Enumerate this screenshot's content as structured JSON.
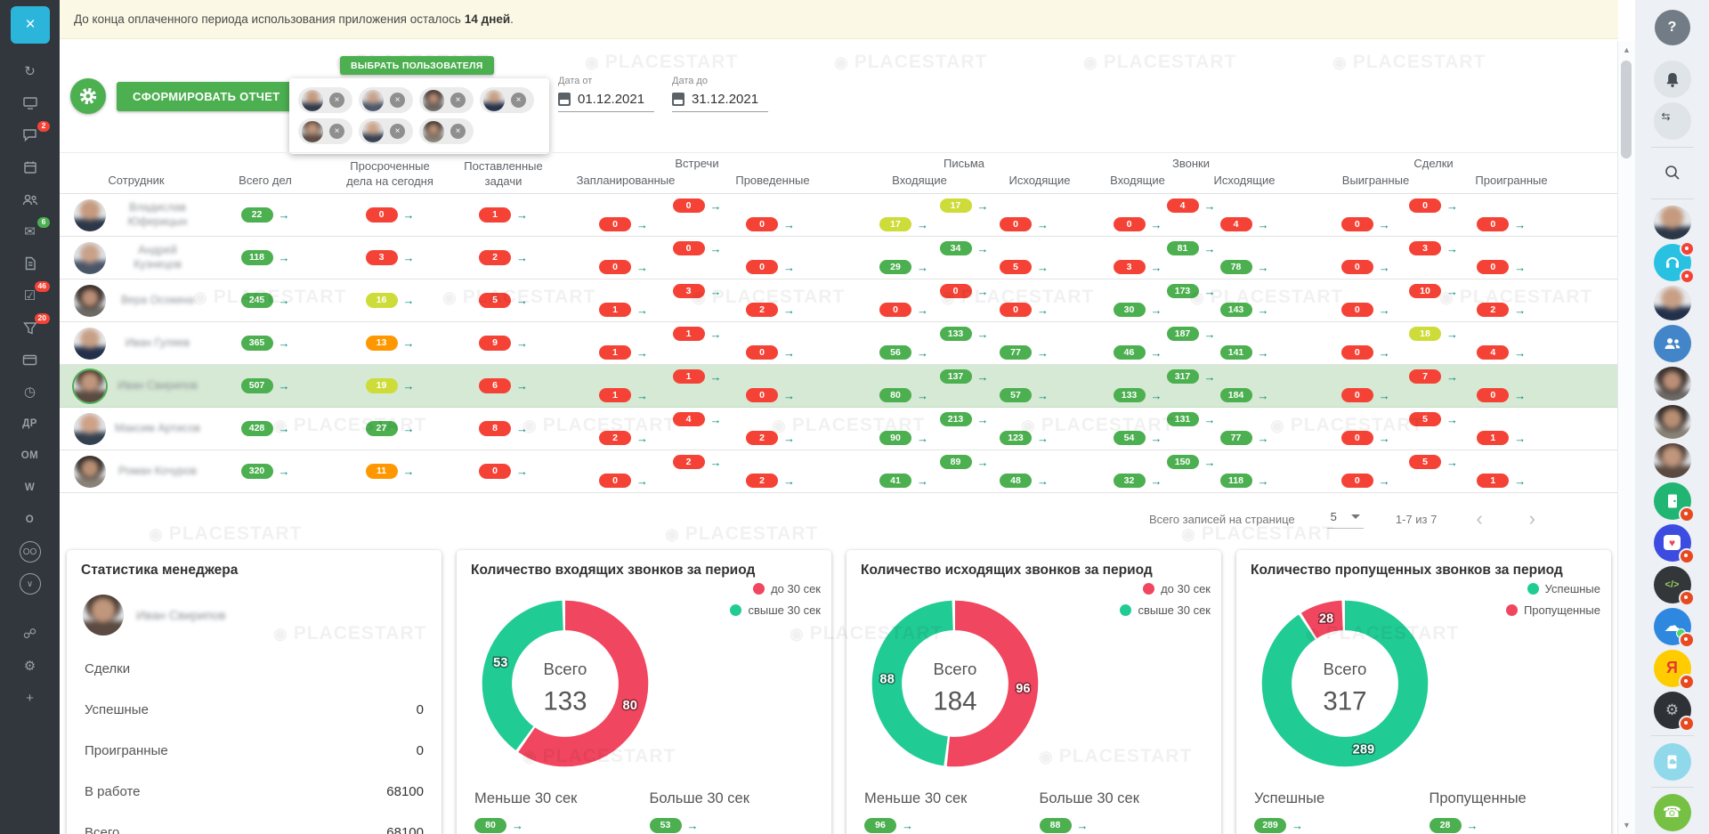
{
  "watermark": "PLACESTART",
  "icons": {
    "arrow": "→",
    "close": "×",
    "help": "?",
    "prev": "‹",
    "next": "›",
    "scroll_up": "▲",
    "scroll_down": "▼",
    "refresh": "↻",
    "mail": "✉",
    "check": "☑",
    "clock": "◷",
    "share": "☍",
    "gear": "⚙",
    "plus": "+",
    "chevron_down": "∨",
    "chat_loop": "⇆",
    "cloud": "☁",
    "heart": "♥",
    "phone": "☎",
    "code": "</>",
    "yandex": "Я"
  },
  "banner": {
    "text_prefix": "До конца оплаченного периода использования приложения осталось",
    "text_bold": "14 дней",
    "text_suffix": "."
  },
  "toolbar": {
    "report_button": "СФОРМИРОВАТЬ ОТЧЕТ",
    "select_user_button": "ВЫБРАТЬ ПОЛЬЗОВАТЕЛЯ",
    "date_from_label": "Дата от",
    "date_from_value": "01.12.2021",
    "date_to_label": "Дата до",
    "date_to_value": "31.12.2021"
  },
  "table": {
    "headers": {
      "employee": "Сотрудник",
      "total": "Всего дел",
      "overdue": "Просроченные дела на сегодня",
      "tasks": "Поставленные задачи",
      "groups": [
        {
          "label": "Встречи",
          "cols": [
            "Запланированные",
            "Проведенные"
          ]
        },
        {
          "label": "Письма",
          "cols": [
            "Входящие",
            "Исходящие"
          ]
        },
        {
          "label": "Звонки",
          "cols": [
            "Входящие",
            "Исходящие"
          ]
        },
        {
          "label": "Сделки",
          "cols": [
            "Выигранные",
            "Проигранные"
          ]
        }
      ]
    },
    "rows": [
      {
        "name": "Владислав Юферицын",
        "total": {
          "v": "22",
          "c": "g"
        },
        "overdue": {
          "v": "0",
          "c": "r"
        },
        "tasks": {
          "v": "1",
          "c": "r"
        },
        "m_t": {
          "v": "0",
          "c": "r"
        },
        "m_p": {
          "v": "0",
          "c": "r"
        },
        "m_h": {
          "v": "0",
          "c": "r"
        },
        "l_t": {
          "v": "17",
          "c": "y"
        },
        "l_i": {
          "v": "17",
          "c": "y"
        },
        "l_o": {
          "v": "0",
          "c": "r"
        },
        "c_t": {
          "v": "4",
          "c": "r"
        },
        "c_i": {
          "v": "0",
          "c": "r"
        },
        "c_o": {
          "v": "4",
          "c": "r"
        },
        "d_t": {
          "v": "0",
          "c": "r"
        },
        "d_w": {
          "v": "0",
          "c": "r"
        },
        "d_l": {
          "v": "0",
          "c": "r"
        },
        "highlighted": false
      },
      {
        "name": "Андрей Кузнецов",
        "total": {
          "v": "118",
          "c": "g"
        },
        "overdue": {
          "v": "3",
          "c": "r"
        },
        "tasks": {
          "v": "2",
          "c": "r"
        },
        "m_t": {
          "v": "0",
          "c": "r"
        },
        "m_p": {
          "v": "0",
          "c": "r"
        },
        "m_h": {
          "v": "0",
          "c": "r"
        },
        "l_t": {
          "v": "34",
          "c": "g"
        },
        "l_i": {
          "v": "29",
          "c": "g"
        },
        "l_o": {
          "v": "5",
          "c": "r"
        },
        "c_t": {
          "v": "81",
          "c": "g"
        },
        "c_i": {
          "v": "3",
          "c": "r"
        },
        "c_o": {
          "v": "78",
          "c": "g"
        },
        "d_t": {
          "v": "3",
          "c": "r"
        },
        "d_w": {
          "v": "0",
          "c": "r"
        },
        "d_l": {
          "v": "0",
          "c": "r"
        },
        "highlighted": false
      },
      {
        "name": "Вера Осокина",
        "total": {
          "v": "245",
          "c": "g"
        },
        "overdue": {
          "v": "16",
          "c": "y"
        },
        "tasks": {
          "v": "5",
          "c": "r"
        },
        "m_t": {
          "v": "3",
          "c": "r"
        },
        "m_p": {
          "v": "1",
          "c": "r"
        },
        "m_h": {
          "v": "2",
          "c": "r"
        },
        "l_t": {
          "v": "0",
          "c": "r"
        },
        "l_i": {
          "v": "0",
          "c": "r"
        },
        "l_o": {
          "v": "0",
          "c": "r"
        },
        "c_t": {
          "v": "173",
          "c": "g"
        },
        "c_i": {
          "v": "30",
          "c": "g"
        },
        "c_o": {
          "v": "143",
          "c": "g"
        },
        "d_t": {
          "v": "10",
          "c": "r"
        },
        "d_w": {
          "v": "0",
          "c": "r"
        },
        "d_l": {
          "v": "2",
          "c": "r"
        },
        "highlighted": false
      },
      {
        "name": "Иван Гуляев",
        "total": {
          "v": "365",
          "c": "g"
        },
        "overdue": {
          "v": "13",
          "c": "o"
        },
        "tasks": {
          "v": "9",
          "c": "r"
        },
        "m_t": {
          "v": "1",
          "c": "r"
        },
        "m_p": {
          "v": "1",
          "c": "r"
        },
        "m_h": {
          "v": "0",
          "c": "r"
        },
        "l_t": {
          "v": "133",
          "c": "g"
        },
        "l_i": {
          "v": "56",
          "c": "g"
        },
        "l_o": {
          "v": "77",
          "c": "g"
        },
        "c_t": {
          "v": "187",
          "c": "g"
        },
        "c_i": {
          "v": "46",
          "c": "g"
        },
        "c_o": {
          "v": "141",
          "c": "g"
        },
        "d_t": {
          "v": "18",
          "c": "y"
        },
        "d_w": {
          "v": "0",
          "c": "r"
        },
        "d_l": {
          "v": "4",
          "c": "r"
        },
        "highlighted": false
      },
      {
        "name": "Иван Свирипов",
        "total": {
          "v": "507",
          "c": "g"
        },
        "overdue": {
          "v": "19",
          "c": "y"
        },
        "tasks": {
          "v": "6",
          "c": "r"
        },
        "m_t": {
          "v": "1",
          "c": "r"
        },
        "m_p": {
          "v": "1",
          "c": "r"
        },
        "m_h": {
          "v": "0",
          "c": "r"
        },
        "l_t": {
          "v": "137",
          "c": "g"
        },
        "l_i": {
          "v": "80",
          "c": "g"
        },
        "l_o": {
          "v": "57",
          "c": "g"
        },
        "c_t": {
          "v": "317",
          "c": "g"
        },
        "c_i": {
          "v": "133",
          "c": "g"
        },
        "c_o": {
          "v": "184",
          "c": "g"
        },
        "d_t": {
          "v": "7",
          "c": "r"
        },
        "d_w": {
          "v": "0",
          "c": "r"
        },
        "d_l": {
          "v": "0",
          "c": "r"
        },
        "highlighted": true
      },
      {
        "name": "Максим Артисов",
        "total": {
          "v": "428",
          "c": "g"
        },
        "overdue": {
          "v": "27",
          "c": "g"
        },
        "tasks": {
          "v": "8",
          "c": "r"
        },
        "m_t": {
          "v": "4",
          "c": "r"
        },
        "m_p": {
          "v": "2",
          "c": "r"
        },
        "m_h": {
          "v": "2",
          "c": "r"
        },
        "l_t": {
          "v": "213",
          "c": "g"
        },
        "l_i": {
          "v": "90",
          "c": "g"
        },
        "l_o": {
          "v": "123",
          "c": "g"
        },
        "c_t": {
          "v": "131",
          "c": "g"
        },
        "c_i": {
          "v": "54",
          "c": "g"
        },
        "c_o": {
          "v": "77",
          "c": "g"
        },
        "d_t": {
          "v": "5",
          "c": "r"
        },
        "d_w": {
          "v": "0",
          "c": "r"
        },
        "d_l": {
          "v": "1",
          "c": "r"
        },
        "highlighted": false
      },
      {
        "name": "Роман Кочуров",
        "total": {
          "v": "320",
          "c": "g"
        },
        "overdue": {
          "v": "11",
          "c": "o"
        },
        "tasks": {
          "v": "0",
          "c": "r"
        },
        "m_t": {
          "v": "2",
          "c": "r"
        },
        "m_p": {
          "v": "0",
          "c": "r"
        },
        "m_h": {
          "v": "2",
          "c": "r"
        },
        "l_t": {
          "v": "89",
          "c": "g"
        },
        "l_i": {
          "v": "41",
          "c": "g"
        },
        "l_o": {
          "v": "48",
          "c": "g"
        },
        "c_t": {
          "v": "150",
          "c": "g"
        },
        "c_i": {
          "v": "32",
          "c": "g"
        },
        "c_o": {
          "v": "118",
          "c": "g"
        },
        "d_t": {
          "v": "5",
          "c": "r"
        },
        "d_w": {
          "v": "0",
          "c": "r"
        },
        "d_l": {
          "v": "1",
          "c": "r"
        },
        "highlighted": false
      }
    ]
  },
  "pagination": {
    "label": "Всего записей на странице",
    "page_size": "5",
    "range": "1-7 из 7"
  },
  "manager_stats": {
    "title": "Статистика менеджера",
    "name": "Иван Свирипов",
    "rows": [
      {
        "label": "Сделки",
        "value": ""
      },
      {
        "label": "Успешные",
        "value": "0"
      },
      {
        "label": "Проигранные",
        "value": "0"
      },
      {
        "label": "В работе",
        "value": "68100"
      },
      {
        "label": "Всего",
        "value": "68100"
      }
    ]
  },
  "chart_data": [
    {
      "type": "pie",
      "title": "Количество входящих звонков за период",
      "center_label": "Всего",
      "total": 133,
      "legend": [
        {
          "label": "до 30 сек",
          "color": "#f1465f"
        },
        {
          "label": "свыше 30 сек",
          "color": "#21cb94"
        }
      ],
      "slices": [
        {
          "label": "до 30 сек",
          "value": 80,
          "color": "#f1465f"
        },
        {
          "label": "свыше 30 сек",
          "value": 53,
          "color": "#21cb94"
        }
      ],
      "footer": [
        {
          "label": "Меньше 30 сек",
          "badge": {
            "v": "80",
            "c": "g"
          }
        },
        {
          "label": "Больше 30 сек",
          "badge": {
            "v": "53",
            "c": "g"
          }
        }
      ]
    },
    {
      "type": "pie",
      "title": "Количество исходящих звонков за период",
      "center_label": "Всего",
      "total": 184,
      "legend": [
        {
          "label": "до 30 сек",
          "color": "#f1465f"
        },
        {
          "label": "свыше 30 сек",
          "color": "#21cb94"
        }
      ],
      "slices": [
        {
          "label": "до 30 сек",
          "value": 96,
          "color": "#f1465f"
        },
        {
          "label": "свыше 30 сек",
          "value": 88,
          "color": "#21cb94"
        }
      ],
      "footer": [
        {
          "label": "Меньше 30 сек",
          "badge": {
            "v": "96",
            "c": "g"
          }
        },
        {
          "label": "Больше 30 сек",
          "badge": {
            "v": "88",
            "c": "g"
          }
        }
      ]
    },
    {
      "type": "pie",
      "title": "Количество пропущенных звонков за период",
      "center_label": "Всего",
      "total": 317,
      "legend": [
        {
          "label": "Успешные",
          "color": "#21cb94"
        },
        {
          "label": "Пропущенные",
          "color": "#f1465f"
        }
      ],
      "slices": [
        {
          "label": "Успешные",
          "value": 289,
          "color": "#21cb94"
        },
        {
          "label": "Пропущенные",
          "value": 28,
          "color": "#f1465f"
        }
      ],
      "footer": [
        {
          "label": "Успешные",
          "badge": {
            "v": "289",
            "c": "g"
          }
        },
        {
          "label": "Пропущенные",
          "badge": {
            "v": "28",
            "c": "g"
          }
        }
      ]
    }
  ],
  "sidebar_left": {
    "badges": {
      "chat": "2",
      "mail": "6",
      "tasks": "46",
      "funnel": "20"
    },
    "text_items": [
      "ДР",
      "ОМ",
      "W",
      "О",
      "ОО"
    ]
  }
}
